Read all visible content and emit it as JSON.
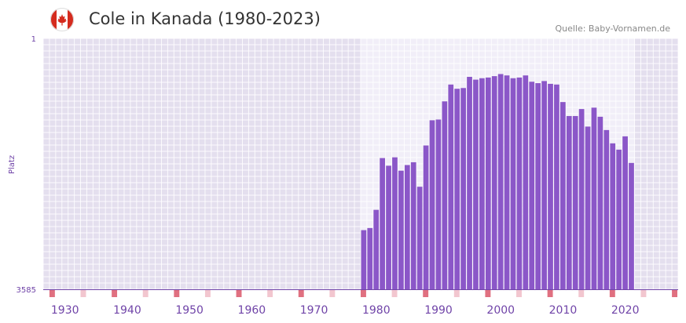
{
  "header": {
    "title": "Cole in Kanada (1980-2023)",
    "source": "Quelle: Baby-Vornamen.de",
    "flag_icon": "canada-flag-icon"
  },
  "colors": {
    "bar": "#8b57c8",
    "axis": "#7044a8",
    "marker_decade": "#e07080",
    "marker_year": "#f2c6cf"
  },
  "chart_data": {
    "type": "bar",
    "title": "Cole in Kanada (1980-2023)",
    "xlabel": "",
    "ylabel": "Platz",
    "y_inverted": true,
    "ylim": [
      1,
      3585
    ],
    "y_tick_labels": [
      "1",
      "3585"
    ],
    "xlim": [
      1927,
      2028
    ],
    "x_tick_labels": [
      "1930",
      "1940",
      "1950",
      "1960",
      "1970",
      "1980",
      "1990",
      "2000",
      "2010",
      "2020"
    ],
    "x": [
      1978,
      1979,
      1980,
      1981,
      1982,
      1983,
      1984,
      1985,
      1986,
      1987,
      1988,
      1989,
      1990,
      1991,
      1992,
      1993,
      1994,
      1995,
      1996,
      1997,
      1998,
      1999,
      2000,
      2001,
      2002,
      2003,
      2004,
      2005,
      2006,
      2007,
      2008,
      2009,
      2010,
      2011,
      2012,
      2013,
      2014,
      2015,
      2016,
      2017,
      2018,
      2019,
      2020,
      2021
    ],
    "values": [
      2740,
      2710,
      2450,
      1710,
      1820,
      1700,
      1890,
      1810,
      1770,
      2120,
      1530,
      1170,
      1160,
      900,
      660,
      720,
      710,
      550,
      590,
      570,
      560,
      540,
      510,
      530,
      570,
      560,
      530,
      620,
      640,
      610,
      650,
      660,
      910,
      1110,
      1110,
      1010,
      1260,
      990,
      1120,
      1310,
      1500,
      1590,
      1400,
      1780
    ]
  }
}
